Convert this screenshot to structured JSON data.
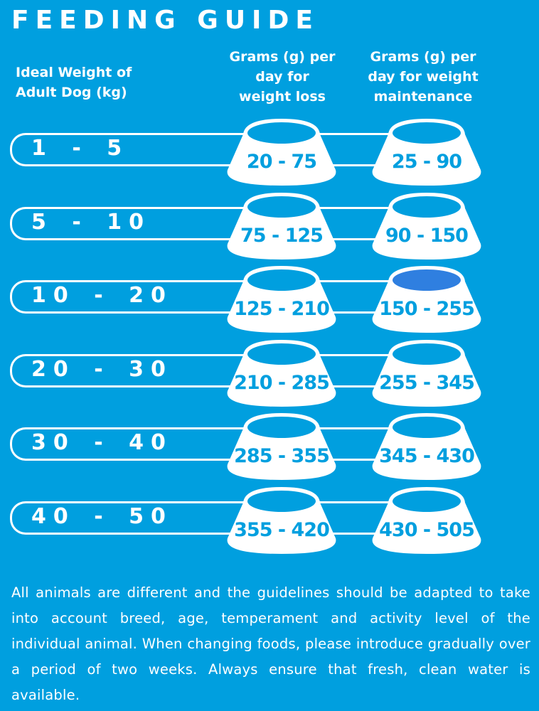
{
  "title": "FEEDING GUIDE",
  "headers": {
    "weight": "Ideal Weight of Adult Dog (kg)",
    "loss": "Grams (g) per day for weight loss",
    "maintenance": "Grams (g) per day for weight maintenance"
  },
  "rows": [
    {
      "weight": "1 - 5",
      "loss": "20 - 75",
      "maintenance": "25 - 90",
      "highlight": false
    },
    {
      "weight": "5 - 10",
      "loss": "75 - 125",
      "maintenance": "90 - 150",
      "highlight": false
    },
    {
      "weight": "10 - 20",
      "loss": "125 - 210",
      "maintenance": "150 - 255",
      "highlight": true
    },
    {
      "weight": "20 - 30",
      "loss": "210 - 285",
      "maintenance": "255 - 345",
      "highlight": false
    },
    {
      "weight": "30 - 40",
      "loss": "285 - 355",
      "maintenance": "345 - 430",
      "highlight": false
    },
    {
      "weight": "40 - 50",
      "loss": "355 - 420",
      "maintenance": "430 - 505",
      "highlight": false
    }
  ],
  "note": "All animals are different and the guidelines should be adapted to take into account breed, age, temperament and activity level of the individual animal. When changing foods, please introduce gradually over a period of two weeks. Always ensure that fresh, clean water is available.",
  "colors": {
    "background": "#009fdf",
    "bowl": "#ffffff",
    "highlight": "#2f7fe0"
  }
}
